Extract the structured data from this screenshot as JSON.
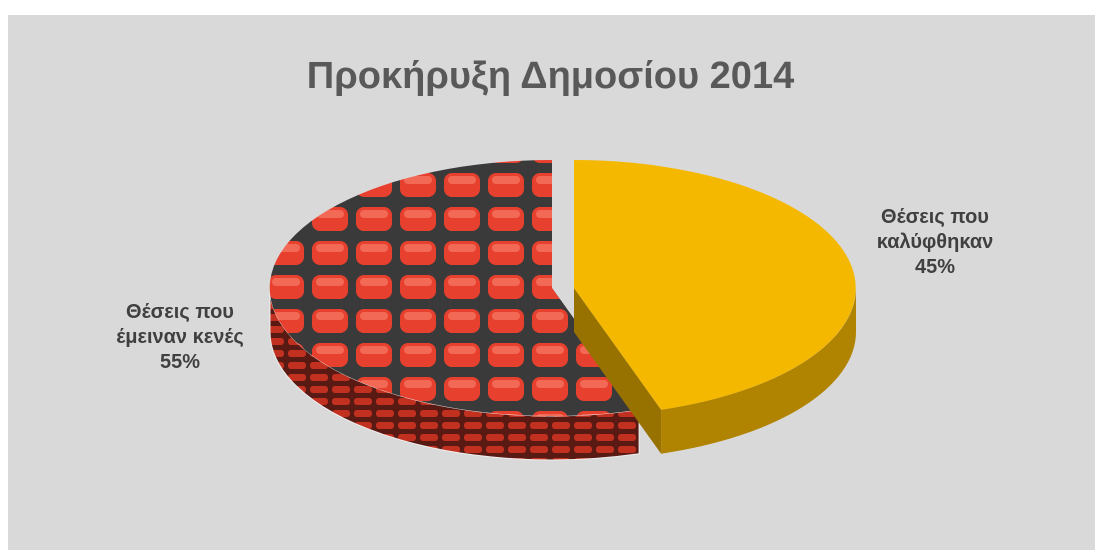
{
  "chart_data": {
    "type": "pie",
    "title": "Προκήρυξη Δημοσίου 2014",
    "categories": [
      "Θέσεις που καλύφθηκαν",
      "Θέσεις που έμειναν κενές"
    ],
    "values": [
      45,
      55
    ],
    "value_labels": [
      "45%",
      "55%"
    ],
    "colors": [
      "#f5b800",
      "#e23b2a"
    ]
  }
}
